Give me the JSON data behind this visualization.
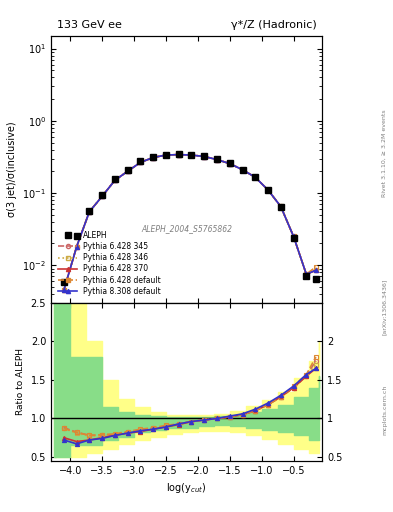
{
  "title_left": "133 GeV ee",
  "title_right": "γ*/Z (Hadronic)",
  "ylabel_main": "σ(3 jet)/σ(inclusive)",
  "ylabel_ratio": "Ratio to ALEPH",
  "xlabel": "log(y$_{cut}$)",
  "watermark": "ALEPH_2004_S5765862",
  "right_label": "Rivet 3.1.10, ≥ 3.2M events",
  "right_label2": "[arXiv:1306.3436]",
  "mcplots": "mcplots.cern.ch",
  "xdata": [
    -4.1,
    -3.9,
    -3.7,
    -3.5,
    -3.3,
    -3.1,
    -2.9,
    -2.7,
    -2.5,
    -2.3,
    -2.1,
    -1.9,
    -1.7,
    -1.5,
    -1.3,
    -1.1,
    -0.9,
    -0.7,
    -0.5,
    -0.3,
    -0.15
  ],
  "aleph_y": [
    0.0058,
    0.025,
    0.057,
    0.095,
    0.155,
    0.21,
    0.275,
    0.32,
    0.34,
    0.345,
    0.34,
    0.325,
    0.295,
    0.26,
    0.21,
    0.165,
    0.11,
    0.063,
    0.024,
    0.007,
    0.0065
  ],
  "py6_345_y": [
    0.0045,
    0.018,
    0.055,
    0.09,
    0.15,
    0.2,
    0.265,
    0.31,
    0.335,
    0.34,
    0.335,
    0.32,
    0.29,
    0.255,
    0.21,
    0.165,
    0.11,
    0.065,
    0.025,
    0.0075,
    0.0085
  ],
  "py6_346_y": [
    0.0045,
    0.018,
    0.055,
    0.09,
    0.15,
    0.2,
    0.265,
    0.31,
    0.335,
    0.34,
    0.335,
    0.32,
    0.29,
    0.255,
    0.21,
    0.165,
    0.11,
    0.065,
    0.025,
    0.0075,
    0.0085
  ],
  "py6_370_y": [
    0.0045,
    0.018,
    0.055,
    0.09,
    0.15,
    0.2,
    0.265,
    0.31,
    0.335,
    0.34,
    0.335,
    0.32,
    0.29,
    0.255,
    0.21,
    0.165,
    0.11,
    0.065,
    0.025,
    0.0075,
    0.0085
  ],
  "py6_def_y": [
    0.0045,
    0.018,
    0.055,
    0.09,
    0.15,
    0.2,
    0.265,
    0.31,
    0.335,
    0.34,
    0.335,
    0.32,
    0.29,
    0.255,
    0.21,
    0.165,
    0.11,
    0.065,
    0.025,
    0.0075,
    0.0095
  ],
  "py8_def_y": [
    0.0045,
    0.018,
    0.055,
    0.09,
    0.15,
    0.2,
    0.265,
    0.31,
    0.335,
    0.34,
    0.335,
    0.32,
    0.29,
    0.255,
    0.21,
    0.165,
    0.11,
    0.065,
    0.025,
    0.0075,
    0.0085
  ],
  "ratio_py6_345": [
    0.88,
    0.82,
    0.78,
    0.78,
    0.79,
    0.82,
    0.85,
    0.87,
    0.9,
    0.93,
    0.96,
    0.98,
    1.0,
    1.02,
    1.05,
    1.1,
    1.18,
    1.28,
    1.4,
    1.55,
    1.75
  ],
  "ratio_py6_346": [
    0.87,
    0.81,
    0.77,
    0.78,
    0.79,
    0.82,
    0.85,
    0.87,
    0.9,
    0.93,
    0.96,
    0.98,
    1.0,
    1.02,
    1.05,
    1.1,
    1.18,
    1.28,
    1.4,
    1.55,
    1.7
  ],
  "ratio_py6_370": [
    0.75,
    0.7,
    0.72,
    0.75,
    0.78,
    0.81,
    0.83,
    0.86,
    0.89,
    0.92,
    0.96,
    0.98,
    1.0,
    1.02,
    1.05,
    1.1,
    1.18,
    1.28,
    1.4,
    1.55,
    1.65
  ],
  "ratio_py6_def": [
    0.87,
    0.82,
    0.78,
    0.79,
    0.8,
    0.83,
    0.86,
    0.88,
    0.91,
    0.93,
    0.96,
    0.98,
    1.0,
    1.02,
    1.05,
    1.1,
    1.18,
    1.28,
    1.42,
    1.57,
    1.8
  ],
  "ratio_py8_def": [
    0.72,
    0.67,
    0.72,
    0.74,
    0.78,
    0.81,
    0.84,
    0.86,
    0.89,
    0.93,
    0.96,
    0.98,
    1.0,
    1.03,
    1.06,
    1.12,
    1.2,
    1.3,
    1.42,
    1.57,
    1.65
  ],
  "green_band_x": [
    -4.25,
    -4.0,
    -3.5,
    -3.25,
    -3.0,
    -2.75,
    -2.5,
    -2.25,
    -2.0,
    -1.75,
    -1.5,
    -1.25,
    -1.0,
    -0.75,
    -0.5,
    -0.25,
    -0.1
  ],
  "green_band_lo": [
    0.5,
    0.65,
    0.72,
    0.76,
    0.82,
    0.85,
    0.87,
    0.88,
    0.9,
    0.91,
    0.9,
    0.88,
    0.85,
    0.82,
    0.78,
    0.72,
    0.72
  ],
  "green_band_hi": [
    2.5,
    1.8,
    1.15,
    1.08,
    1.05,
    1.03,
    1.02,
    1.02,
    1.02,
    1.03,
    1.05,
    1.08,
    1.12,
    1.18,
    1.28,
    1.4,
    1.55
  ],
  "yellow_band_x": [
    -4.25,
    -4.0,
    -3.75,
    -3.5,
    -3.25,
    -3.0,
    -2.75,
    -2.5,
    -2.25,
    -2.0,
    -1.75,
    -1.5,
    -1.25,
    -1.0,
    -0.75,
    -0.5,
    -0.25,
    -0.1
  ],
  "yellow_band_lo": [
    0.5,
    0.5,
    0.55,
    0.6,
    0.67,
    0.72,
    0.76,
    0.8,
    0.82,
    0.84,
    0.84,
    0.82,
    0.78,
    0.73,
    0.67,
    0.6,
    0.55,
    0.55
  ],
  "yellow_band_hi": [
    2.5,
    2.5,
    2.0,
    1.5,
    1.25,
    1.15,
    1.08,
    1.05,
    1.04,
    1.04,
    1.06,
    1.1,
    1.16,
    1.24,
    1.35,
    1.52,
    1.75,
    2.0
  ],
  "color_py6_345": "#cc6666",
  "color_py6_346": "#ccaa44",
  "color_py6_370": "#cc3333",
  "color_py6_def": "#dd8833",
  "color_py8_def": "#3333cc",
  "xlim": [
    -4.3,
    -0.05
  ],
  "ylim_main": [
    0.003,
    15.0
  ],
  "ylim_ratio": [
    0.45,
    2.5
  ]
}
